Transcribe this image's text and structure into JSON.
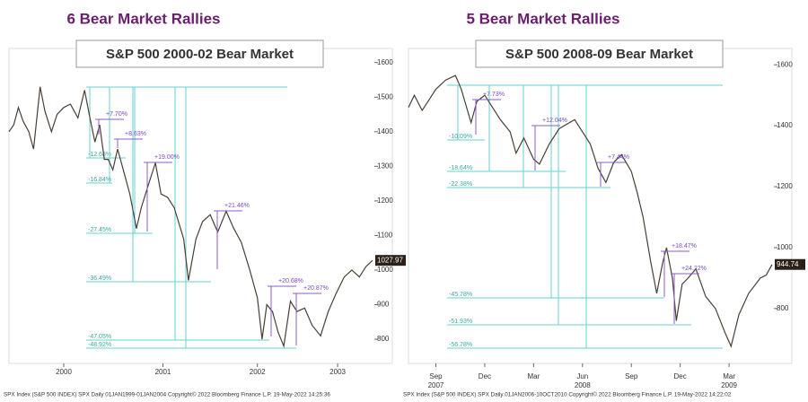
{
  "chart_data": [
    {
      "type": "line",
      "title": "6 Bear Market Rallies",
      "subtitle": "S&P 500 2000-02 Bear Market",
      "color": "#4a3f35",
      "x": [
        1999.87,
        1999.92,
        1999.97,
        2000.02,
        2000.08,
        2000.13,
        2000.2,
        2000.25,
        2000.32,
        2000.38,
        2000.45,
        2000.52,
        2000.6,
        2000.67,
        2000.72,
        2000.78,
        2000.83,
        2000.88,
        2000.92,
        2000.97,
        2001.02,
        2001.08,
        2001.15,
        2001.22,
        2001.27,
        2001.35,
        2001.42,
        2001.48,
        2001.55,
        2001.62,
        2001.72,
        2001.77,
        2001.85,
        2001.92,
        2002.0,
        2002.08,
        2002.17,
        2002.25,
        2002.33,
        2002.42,
        2002.5,
        2002.55,
        2002.6,
        2002.66,
        2002.72,
        2002.78,
        2002.85,
        2002.92,
        2003.0,
        2003.08,
        2003.17,
        2003.25,
        2003.33,
        2003.42,
        2003.5,
        2003.58,
        2003.65,
        2003.72
      ],
      "values": [
        1400,
        1420,
        1470,
        1430,
        1400,
        1350,
        1530,
        1460,
        1400,
        1450,
        1470,
        1480,
        1440,
        1520,
        1450,
        1370,
        1420,
        1320,
        1320,
        1290,
        1350,
        1290,
        1220,
        1120,
        1180,
        1250,
        1310,
        1220,
        1210,
        1180,
        1090,
        970,
        1090,
        1140,
        1160,
        1110,
        1170,
        1120,
        1080,
        1000,
        920,
        800,
        900,
        880,
        820,
        780,
        910,
        880,
        890,
        840,
        810,
        880,
        930,
        980,
        1000,
        980,
        1010,
        1027.97
      ],
      "xlim": [
        1999.87,
        2003.72
      ],
      "xticks": [
        {
          "value": 2000.45,
          "label": "2000"
        },
        {
          "value": 2001.5,
          "label": "2001"
        },
        {
          "value": 2002.5,
          "label": "2002"
        },
        {
          "value": 2003.35,
          "label": "2003"
        }
      ],
      "ylim": [
        730,
        1620
      ],
      "yticks": [
        800,
        900,
        1000,
        1100,
        1200,
        1300,
        1400,
        1500,
        1600
      ],
      "rallies": [
        "+7.70%",
        "+8.63%",
        "+19.00%",
        "+21.46%",
        "+20.68%",
        "+20.87%"
      ],
      "drawdowns": [
        "-12.68%",
        "-16.84%",
        "-27.45%",
        "-36.49%",
        "-47.05%",
        "-48.92%"
      ],
      "footer": "SPX Index (S&P 500 INDEX) SPX  Daily 01JAN1999-01JAN2004  Copyright© 2022 Bloomberg Finance L.P.    19-May-2022 14:25:36"
    },
    {
      "type": "line",
      "title": "5 Bear Market Rallies",
      "subtitle": "S&P 500 2008-09 Bear Market",
      "color": "#4a3f35",
      "x": [
        2007.53,
        2007.56,
        2007.6,
        2007.63,
        2007.67,
        2007.72,
        2007.77,
        2007.8,
        2007.85,
        2007.88,
        2007.92,
        2007.96,
        2008.0,
        2008.05,
        2008.08,
        2008.12,
        2008.17,
        2008.2,
        2008.25,
        2008.3,
        2008.38,
        2008.42,
        2008.46,
        2008.5,
        2008.54,
        2008.58,
        2008.62,
        2008.67,
        2008.7,
        2008.73,
        2008.77,
        2008.8,
        2008.83,
        2008.85,
        2008.88,
        2008.9,
        2008.93,
        2008.96,
        2009.0,
        2009.05,
        2009.1,
        2009.15,
        2009.18,
        2009.22,
        2009.27,
        2009.33,
        2009.36,
        2009.39
      ],
      "values": [
        1460,
        1500,
        1450,
        1480,
        1520,
        1550,
        1565,
        1520,
        1410,
        1480,
        1500,
        1460,
        1420,
        1380,
        1310,
        1360,
        1290,
        1274,
        1340,
        1390,
        1420,
        1380,
        1340,
        1260,
        1214,
        1280,
        1305,
        1250,
        1180,
        1100,
        950,
        850,
        950,
        1000,
        900,
        760,
        880,
        900,
        930,
        840,
        800,
        720,
        676,
        780,
        850,
        900,
        910,
        944.74
      ],
      "xlim": [
        2007.53,
        2009.39
      ],
      "xticks": [
        {
          "value": 2007.67,
          "label": "Sep"
        },
        {
          "value": 2007.92,
          "label": "Dec"
        },
        {
          "value": 2008.17,
          "label": "Mar"
        },
        {
          "value": 2008.42,
          "label": "Jun"
        },
        {
          "value": 2008.67,
          "label": "Sep"
        },
        {
          "value": 2008.92,
          "label": "Dec"
        },
        {
          "value": 2009.17,
          "label": "Mar"
        }
      ],
      "xticks2": [
        {
          "value": 2007.67,
          "label": "2007"
        },
        {
          "value": 2008.42,
          "label": "2008"
        },
        {
          "value": 2009.17,
          "label": "2009"
        }
      ],
      "ylim": [
        620,
        1630
      ],
      "yticks": [
        800,
        1000,
        1200,
        1400,
        1600
      ],
      "rallies": [
        "+7.73%",
        "+12.04%",
        "+7.44%",
        "+18.47%",
        "+24.22%"
      ],
      "drawdowns": [
        "-10.09%",
        "-18.64%",
        "-22.38%",
        "-45.78%",
        "-51.93%",
        "-56.78%"
      ],
      "footer": "SPX Index (S&P 500 INDEX) SPX  Daily 01JAN2006-10OCT2010  Copyright© 2022 Bloomberg Finance L.P.    19-May-2022 14:22:02"
    }
  ]
}
